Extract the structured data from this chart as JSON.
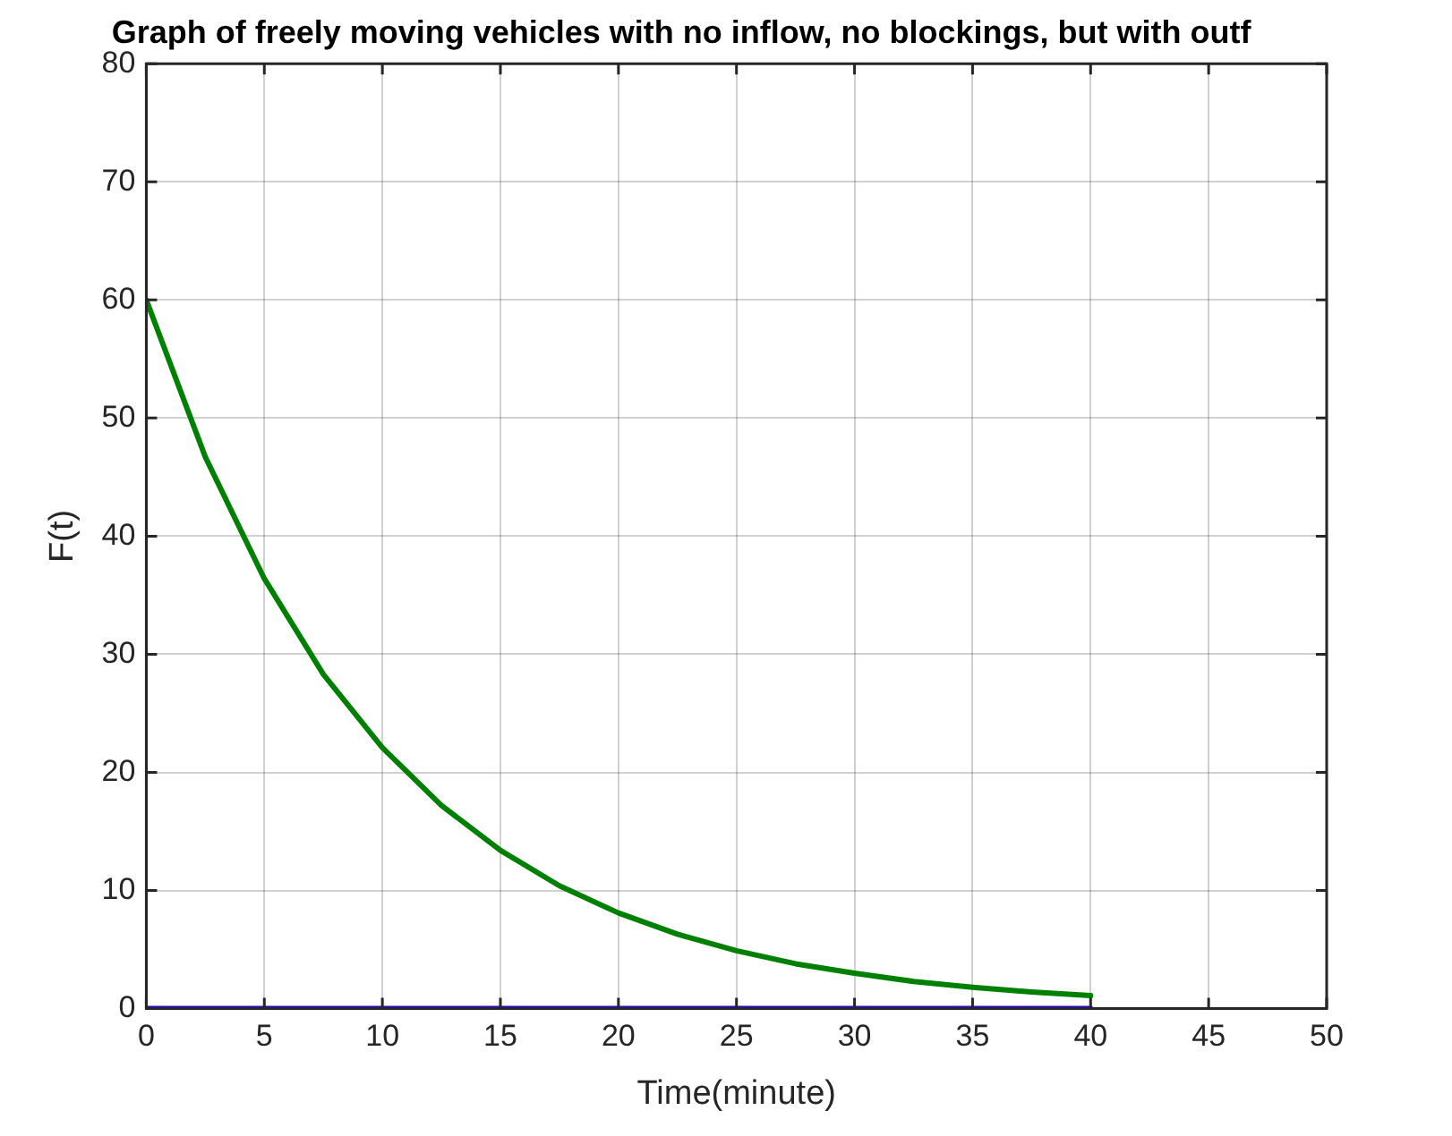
{
  "chart_data": {
    "type": "line",
    "title": "Graph of freely moving vehicles with no inflow, no blockings, but with outf",
    "xlabel": "Time(minute)",
    "ylabel": "F(t)",
    "x": [
      0,
      2.5,
      5,
      7.5,
      10,
      12.5,
      15,
      17.5,
      20,
      22.5,
      25,
      27.5,
      30,
      32.5,
      35,
      37.5,
      40
    ],
    "series": [
      {
        "color": "#008000",
        "values": [
          60,
          46.7,
          36.4,
          28.3,
          22.1,
          17.2,
          13.4,
          10.4,
          8.1,
          6.3,
          4.9,
          3.8,
          3.0,
          2.3,
          1.8,
          1.4,
          1.1
        ]
      },
      {
        "color": "#2a00e0",
        "values": [
          0,
          0,
          0,
          0,
          0,
          0,
          0,
          0,
          0,
          0,
          0,
          0,
          0,
          0,
          0,
          0,
          0
        ]
      }
    ],
    "xlim": [
      0,
      50
    ],
    "xticks": [
      0,
      5,
      10,
      15,
      20,
      25,
      30,
      35,
      40,
      45,
      50
    ],
    "ylim": [
      0,
      80
    ],
    "yticks": [
      0,
      10,
      20,
      30,
      40,
      50,
      60,
      70,
      80
    ],
    "grid": true,
    "legend": false,
    "marker": "none",
    "line_style": "solid"
  }
}
